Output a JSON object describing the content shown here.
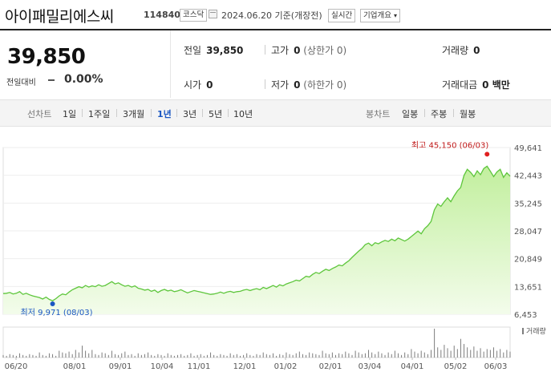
{
  "header": {
    "title": "아이패밀리에스씨",
    "code": "114840",
    "market": "코스닥",
    "date": "2024.06.20",
    "basis": "기준(개장전)",
    "realtime": "실시간",
    "company_overview": "기업개요"
  },
  "quote": {
    "price": "39,850",
    "change_label": "전일대비",
    "change_value": "0",
    "change_pct": "0.00%",
    "prev_close_label": "전일",
    "prev_close": "39,850",
    "high_label": "고가",
    "high": "0",
    "upper_limit": "(상한가 0)",
    "volume_label": "거래량",
    "volume": "0",
    "open_label": "시가",
    "open": "0",
    "low_label": "저가",
    "low": "0",
    "lower_limit": "(하한가 0)",
    "amount_label": "거래대금",
    "amount": "0 백만"
  },
  "tabs": {
    "line_label": "선차트",
    "line_periods": [
      "1일",
      "1주일",
      "3개월",
      "1년",
      "3년",
      "5년",
      "10년"
    ],
    "selected": "1년",
    "candle_label": "봉차트",
    "candle_periods": [
      "일봉",
      "주봉",
      "월봉"
    ]
  },
  "chart_data": {
    "type": "area",
    "y_ticks": [
      "49,641",
      "42,443",
      "35,245",
      "28,047",
      "20,849",
      "13,651",
      "6,453"
    ],
    "y_tick_values": [
      49641,
      42443,
      35245,
      28047,
      20849,
      13651,
      6453
    ],
    "ylim": [
      6453,
      49641
    ],
    "x_ticks": [
      "06/20",
      "08/01",
      "09/01",
      "10/04",
      "11/01",
      "12/01",
      "01/02",
      "02/01",
      "03/04",
      "04/01",
      "05/02",
      "06/03"
    ],
    "high_annotation": "최고 45,150 (06/03)",
    "low_annotation": "최저 9,971 (08/03)",
    "volume_label": "거래량",
    "colors": {
      "line": "#5ec63c",
      "fill_top": "#c2ef9e",
      "fill_bottom": "#f3fceb",
      "high": "#e02020",
      "low": "#1a56c2",
      "volume": "#7d7d7d"
    },
    "series": [
      {
        "values": [
          11800,
          11900,
          12100,
          11700,
          11900,
          12300,
          11600,
          11900,
          11500,
          11200,
          11000,
          10800,
          10400,
          10900,
          10300,
          9971,
          10500,
          11200,
          11700,
          11500,
          12200,
          12800,
          13200,
          13600,
          13300,
          13900,
          13500,
          13800,
          13600,
          14100,
          13700,
          13900,
          14400,
          14900,
          14300,
          14600,
          14100,
          13700,
          13900,
          13500,
          13800,
          13200,
          13000,
          12700,
          12900,
          12400,
          12700,
          12100,
          12600,
          12900,
          12500,
          12700,
          12300,
          12500,
          12800,
          12400,
          12000,
          12300,
          12600,
          12400,
          12200,
          12000,
          11800,
          11600,
          11700,
          11900,
          12200,
          11900,
          12200,
          12400,
          12100,
          12300,
          12400,
          12700,
          12900,
          12600,
          12900,
          13100,
          12800,
          13400,
          13100,
          13500,
          13900,
          13500,
          14100,
          13800,
          14300,
          14600,
          14900,
          15300,
          15100,
          15700,
          16300,
          16100,
          16800,
          17300,
          17000,
          17600,
          18100,
          17800,
          18300,
          18700,
          19200,
          19000,
          19700,
          20300,
          21200,
          22000,
          22800,
          23500,
          24500,
          24900,
          24200,
          25000,
          24700,
          25200,
          25600,
          25300,
          25900,
          25500,
          26200,
          25800,
          25400,
          25900,
          26600,
          27300,
          28000,
          27300,
          28600,
          29400,
          30500,
          33500,
          35000,
          34400,
          35600,
          36600,
          35600,
          37100,
          38400,
          39300,
          42400,
          44000,
          43200,
          42100,
          43600,
          42600,
          44200,
          44800,
          43500,
          42100,
          43300,
          44000,
          41900,
          43100,
          42200
        ]
      }
    ],
    "volume": [
      3,
      2,
      4,
      3,
      2,
      5,
      3,
      2,
      4,
      3,
      2,
      6,
      3,
      2,
      5,
      4,
      2,
      8,
      6,
      5,
      7,
      4,
      9,
      6,
      14,
      8,
      5,
      9,
      4,
      3,
      6,
      5,
      3,
      8,
      4,
      3,
      5,
      7,
      3,
      4,
      2,
      5,
      3,
      4,
      6,
      3,
      2,
      4,
      3,
      2,
      5,
      3,
      2,
      3,
      4,
      2,
      3,
      5,
      2,
      3,
      4,
      2,
      3,
      6,
      3,
      2,
      4,
      3,
      2,
      5,
      3,
      4,
      2,
      3,
      5,
      3,
      2,
      4,
      3,
      6,
      4,
      3,
      5,
      2,
      4,
      3,
      6,
      4,
      3,
      5,
      7,
      4,
      3,
      6,
      5,
      4,
      3,
      8,
      5,
      4,
      6,
      3,
      5,
      4,
      7,
      5,
      3,
      8,
      6,
      4,
      5,
      9,
      6,
      4,
      7,
      5,
      3,
      6,
      4,
      8,
      5,
      3,
      6,
      4,
      10,
      7,
      5,
      8,
      6,
      4,
      9,
      34,
      12,
      9,
      15,
      11,
      8,
      14,
      10,
      22,
      16,
      12,
      9,
      13,
      8,
      11,
      7,
      10,
      9,
      12,
      8,
      10,
      6,
      9,
      7
    ]
  }
}
